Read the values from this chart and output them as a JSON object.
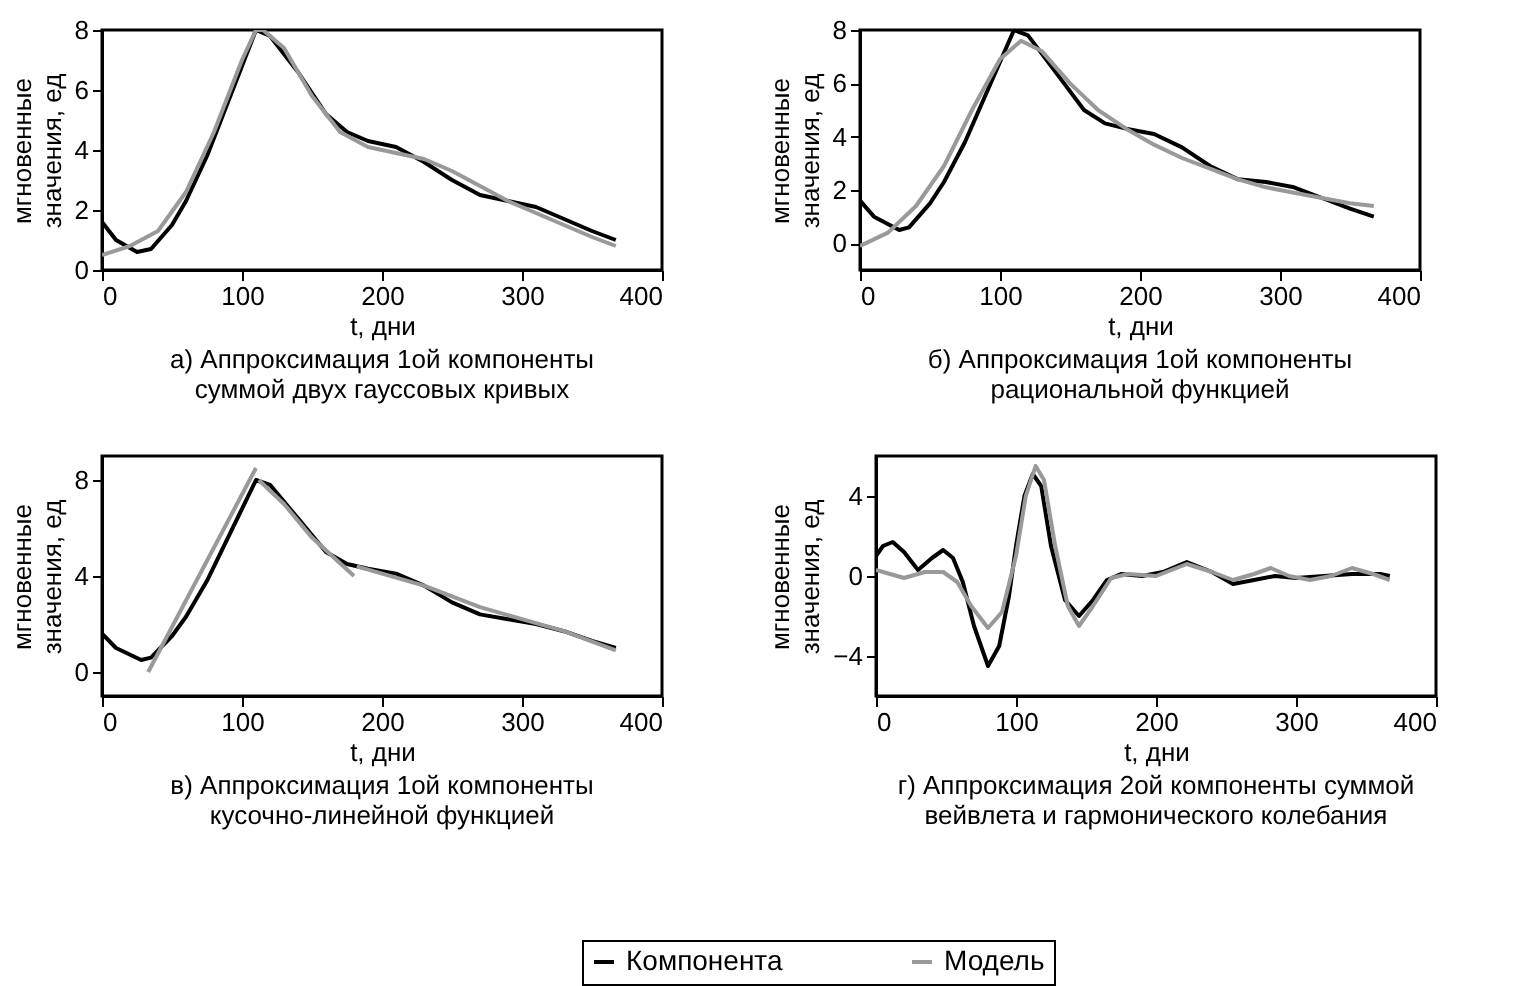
{
  "chart_data": [
    {
      "type": "line",
      "title": "а) Аппроксимация 1ой компоненты\nсуммой двух гауссовых кривых",
      "xlabel": "t, дни",
      "ylabel": "мгновенные\nзначения, ед",
      "xlim": [
        0,
        400
      ],
      "xticks": [
        0,
        100,
        200,
        300,
        400
      ],
      "ylim": [
        0,
        8
      ],
      "yticks": [
        0,
        2,
        4,
        6,
        8
      ],
      "grid": false,
      "legend": "bottom",
      "series": [
        {
          "name": "Компонента",
          "color": "#000000",
          "x": [
            0,
            10,
            25,
            35,
            50,
            60,
            75,
            90,
            100,
            110,
            120,
            140,
            160,
            175,
            190,
            210,
            230,
            250,
            270,
            290,
            310,
            330,
            350,
            367
          ],
          "values": [
            1.6,
            1.0,
            0.6,
            0.7,
            1.5,
            2.3,
            3.8,
            5.6,
            6.8,
            8.0,
            7.8,
            6.6,
            5.2,
            4.6,
            4.3,
            4.1,
            3.6,
            3.0,
            2.5,
            2.3,
            2.1,
            1.7,
            1.3,
            1.0
          ]
        },
        {
          "name": "Модель",
          "color": "#999999",
          "x": [
            0,
            20,
            40,
            60,
            80,
            100,
            110,
            115,
            130,
            150,
            170,
            190,
            210,
            230,
            250,
            270,
            290,
            310,
            330,
            350,
            367
          ],
          "values": [
            0.5,
            0.8,
            1.3,
            2.6,
            4.6,
            7.0,
            8.0,
            8.0,
            7.4,
            5.8,
            4.6,
            4.1,
            3.9,
            3.7,
            3.3,
            2.8,
            2.3,
            1.9,
            1.5,
            1.1,
            0.8
          ]
        }
      ]
    },
    {
      "type": "line",
      "title": "б) Аппроксимация 1ой компоненты\nрациональной функцией",
      "xlabel": "t, дни",
      "ylabel": "мгновенные\nзначения, ед",
      "xlim": [
        0,
        400
      ],
      "xticks": [
        0,
        100,
        200,
        300,
        400
      ],
      "ylim": [
        -1,
        8
      ],
      "yticks": [
        0,
        2,
        4,
        6,
        8
      ],
      "grid": false,
      "legend": "bottom",
      "series": [
        {
          "name": "Компонента",
          "color": "#000000",
          "x": [
            0,
            10,
            28,
            35,
            50,
            60,
            75,
            90,
            100,
            110,
            120,
            140,
            160,
            175,
            190,
            210,
            230,
            250,
            270,
            290,
            310,
            330,
            350,
            367
          ],
          "values": [
            1.6,
            1.0,
            0.5,
            0.6,
            1.5,
            2.3,
            3.8,
            5.6,
            6.8,
            8.0,
            7.8,
            6.4,
            5.0,
            4.5,
            4.3,
            4.1,
            3.6,
            2.9,
            2.4,
            2.3,
            2.1,
            1.7,
            1.3,
            1.0
          ]
        },
        {
          "name": "Модель",
          "color": "#999999",
          "x": [
            0,
            20,
            40,
            60,
            80,
            100,
            115,
            130,
            150,
            170,
            190,
            210,
            230,
            250,
            270,
            290,
            310,
            330,
            350,
            367
          ],
          "values": [
            -0.1,
            0.4,
            1.4,
            2.9,
            5.0,
            6.9,
            7.6,
            7.2,
            6.0,
            5.0,
            4.3,
            3.7,
            3.2,
            2.8,
            2.4,
            2.1,
            1.9,
            1.7,
            1.5,
            1.4
          ]
        }
      ]
    },
    {
      "type": "line",
      "title": "в) Аппроксимация 1ой компоненты\nкусочно-линейной функцией",
      "xlabel": "t, дни",
      "ylabel": "мгновенные\nзначения, ед",
      "xlim": [
        0,
        400
      ],
      "xticks": [
        0,
        100,
        200,
        300,
        400
      ],
      "ylim": [
        -1,
        9
      ],
      "yticks": [
        0,
        4,
        8
      ],
      "grid": false,
      "legend": "bottom",
      "series": [
        {
          "name": "Компонента",
          "color": "#000000",
          "x": [
            0,
            10,
            28,
            35,
            50,
            60,
            75,
            90,
            100,
            110,
            120,
            140,
            160,
            175,
            190,
            210,
            230,
            250,
            270,
            290,
            310,
            330,
            350,
            367
          ],
          "values": [
            1.6,
            1.0,
            0.5,
            0.6,
            1.5,
            2.3,
            3.8,
            5.6,
            6.8,
            8.0,
            7.8,
            6.4,
            5.0,
            4.5,
            4.3,
            4.1,
            3.6,
            2.9,
            2.4,
            2.2,
            2.0,
            1.7,
            1.3,
            1.0
          ]
        },
        {
          "name": "Модель",
          "color": "#999999",
          "x": [
            33,
            110,
            111,
            112,
            130,
            150,
            165,
            180,
            181,
            182,
            230,
            270,
            300,
            330,
            367
          ],
          "values": [
            0.0,
            8.5,
            null,
            8.0,
            7.0,
            5.6,
            4.8,
            4.0,
            null,
            4.4,
            3.6,
            2.7,
            2.2,
            1.7,
            0.9
          ]
        }
      ]
    },
    {
      "type": "line",
      "title": "г) Аппроксимация 2ой компоненты суммой\nвейвлета и гармонического колебания",
      "xlabel": "t, дни",
      "ylabel": "мгновенные\nзначения, ед",
      "xlim": [
        0,
        400
      ],
      "xticks": [
        0,
        100,
        200,
        300,
        400
      ],
      "ylim": [
        -6,
        6
      ],
      "yticks": [
        -4,
        0,
        4
      ],
      "grid": false,
      "legend": "bottom",
      "series": [
        {
          "name": "Компонента",
          "color": "#000000",
          "x": [
            0,
            5,
            12,
            20,
            30,
            40,
            48,
            55,
            62,
            70,
            80,
            88,
            95,
            100,
            106,
            112,
            118,
            125,
            135,
            145,
            155,
            165,
            175,
            190,
            205,
            222,
            240,
            255,
            270,
            285,
            300,
            320,
            340,
            360,
            367
          ],
          "values": [
            1.0,
            1.5,
            1.7,
            1.2,
            0.3,
            0.9,
            1.3,
            0.9,
            -0.3,
            -2.5,
            -4.5,
            -3.5,
            -1.0,
            1.5,
            4.0,
            5.1,
            4.5,
            1.5,
            -1.2,
            -2.0,
            -1.2,
            -0.2,
            0.1,
            0.0,
            0.2,
            0.7,
            0.2,
            -0.4,
            -0.2,
            0.0,
            -0.1,
            0.0,
            0.1,
            0.1,
            0.0
          ]
        },
        {
          "name": "Модель",
          "color": "#999999",
          "x": [
            0,
            10,
            20,
            35,
            48,
            58,
            68,
            80,
            90,
            100,
            107,
            114,
            120,
            128,
            137,
            145,
            155,
            168,
            180,
            200,
            222,
            240,
            255,
            270,
            282,
            295,
            310,
            325,
            340,
            355,
            367
          ],
          "values": [
            0.3,
            0.1,
            -0.1,
            0.2,
            0.2,
            -0.3,
            -1.5,
            -2.6,
            -1.8,
            1.0,
            4.0,
            5.5,
            4.8,
            1.5,
            -1.5,
            -2.5,
            -1.5,
            -0.1,
            0.1,
            0.0,
            0.6,
            0.2,
            -0.2,
            0.1,
            0.4,
            0.0,
            -0.2,
            0.0,
            0.4,
            0.1,
            -0.2
          ]
        }
      ]
    }
  ]
}
